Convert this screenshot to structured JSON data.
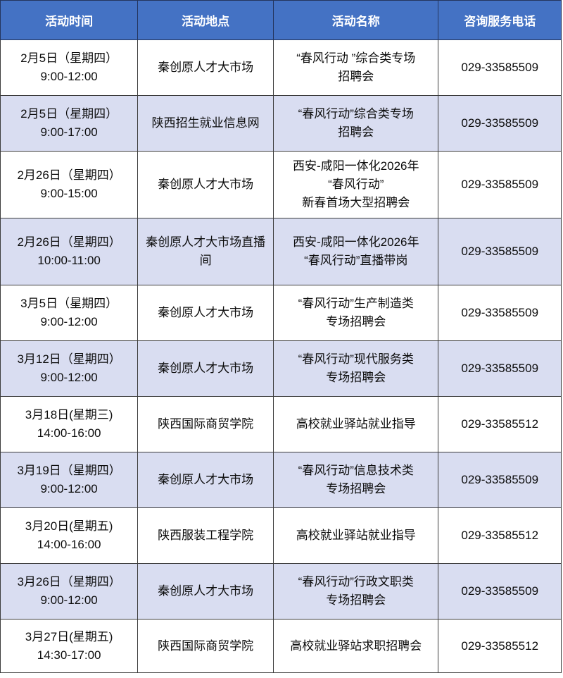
{
  "table": {
    "title_semantic": "spring-breeze-action-recruitment-schedule",
    "colors": {
      "header_bg": "#4472C4",
      "header_text": "#FFFFFF",
      "alt_row_bg": "#D9DDF1",
      "row_bg": "#FFFFFF",
      "border": "#3C3C3C"
    },
    "headers": {
      "time": "活动时间",
      "place": "活动地点",
      "name": "活动名称",
      "phone": "咨询服务电话"
    },
    "rows": [
      {
        "time": "2月5日（星期四）\n9:00-12:00",
        "place": "秦创原人才大市场",
        "name": "“春风行动 ”综合类专场\n招聘会",
        "phone": "029-33585509"
      },
      {
        "time": "2月5日（星期四）\n9:00-17:00",
        "place": "陕西招生就业信息网",
        "name": "“春风行动”综合类专场\n招聘会",
        "phone": "029-33585509"
      },
      {
        "time": "2月26日（星期四）\n9:00-15:00",
        "place": "秦创原人才大市场",
        "name": "西安-咸阳一体化2026年\n“春风行动”\n新春首场大型招聘会",
        "phone": "029-33585509"
      },
      {
        "time": "2月26日（星期四）\n10:00-11:00",
        "place": "秦创原人才大市场直播间",
        "name": "西安-咸阳一体化2026年\n“春风行动”直播带岗",
        "phone": "029-33585509"
      },
      {
        "time": "3月5日（星期四）\n9:00-12:00",
        "place": "秦创原人才大市场",
        "name": "“春风行动”生产制造类\n专场招聘会",
        "phone": "029-33585509"
      },
      {
        "time": "3月12日（星期四）\n9:00-12:00",
        "place": "秦创原人才大市场",
        "name": "“春风行动”现代服务类\n专场招聘会",
        "phone": "029-33585509"
      },
      {
        "time": "3月18日(星期三)\n14:00-16:00",
        "place": "陕西国际商贸学院",
        "name": "高校就业驿站就业指导",
        "phone": "029-33585512"
      },
      {
        "time": "3月19日（星期四）\n9:00-12:00",
        "place": "秦创原人才大市场",
        "name": "“春风行动”信息技术类\n专场招聘会",
        "phone": "029-33585509"
      },
      {
        "time": "3月20日(星期五)\n14:00-16:00",
        "place": "陕西服装工程学院",
        "name": "高校就业驿站就业指导",
        "phone": "029-33585512"
      },
      {
        "time": "3月26日（星期四）\n9:00-12:00",
        "place": "秦创原人才大市场",
        "name": "“春风行动”行政文职类\n专场招聘会",
        "phone": "029-33585509"
      },
      {
        "time": "3月27日(星期五)\n14:30-17:00",
        "place": "陕西国际商贸学院",
        "name": "高校就业驿站求职招聘会",
        "phone": "029-33585512"
      }
    ]
  }
}
